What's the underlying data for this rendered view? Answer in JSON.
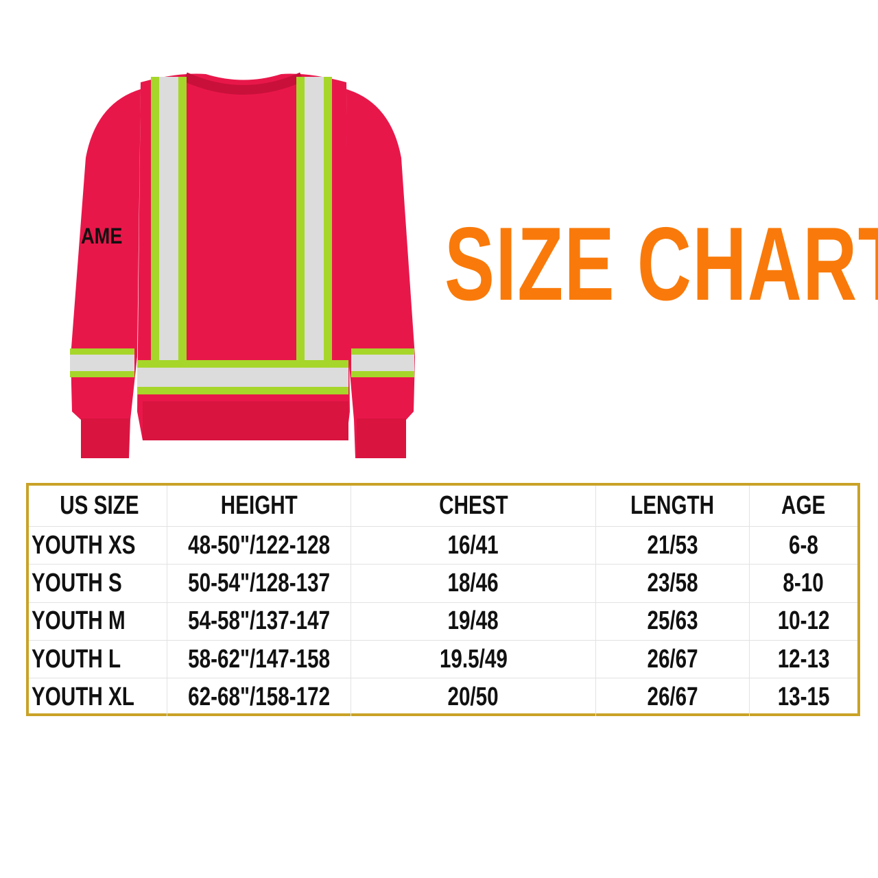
{
  "product": {
    "sleeve_text": "AME",
    "colors": {
      "body": "#E8174A",
      "reflective": "#D9D9D9",
      "trim": "#A6D62A"
    }
  },
  "title": "SIZE CHART",
  "title_color": "#F97A0A",
  "table": {
    "border_color": "#C9A227",
    "headers": [
      "US SIZE",
      "HEIGHT",
      "CHEST",
      "LENGTH",
      "AGE"
    ],
    "rows": [
      [
        "YOUTH XS",
        "48-50\"/122-128",
        "16/41",
        "21/53",
        "6-8"
      ],
      [
        "YOUTH S",
        "50-54\"/128-137",
        "18/46",
        "23/58",
        "8-10"
      ],
      [
        "YOUTH M",
        "54-58\"/137-147",
        "19/48",
        "25/63",
        "10-12"
      ],
      [
        "YOUTH L",
        "58-62\"/147-158",
        "19.5/49",
        "26/67",
        "12-13"
      ],
      [
        "YOUTH XL",
        "62-68\"/158-172",
        "20/50",
        "26/67",
        "13-15"
      ]
    ]
  }
}
